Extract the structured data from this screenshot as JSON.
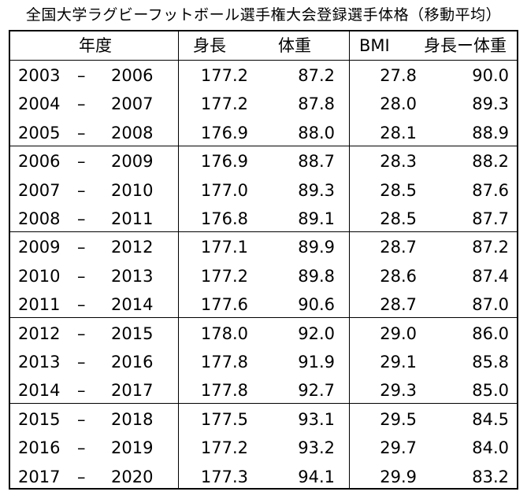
{
  "title": "全国大学ラグビーフットボール選手権大会登録選手体格（移動平均）",
  "headers": {
    "period": "年度",
    "height": "身長",
    "weight": "体重",
    "bmi": "BMI",
    "diff": "身長ー体重"
  },
  "rows": [
    {
      "from": "2003",
      "sep": "–",
      "to": "2006",
      "height": "177.2",
      "weight": "87.2",
      "bmi": "27.8",
      "diff": "90.0"
    },
    {
      "from": "2004",
      "sep": "–",
      "to": "2007",
      "height": "177.2",
      "weight": "87.8",
      "bmi": "28.0",
      "diff": "89.3"
    },
    {
      "from": "2005",
      "sep": "–",
      "to": "2008",
      "height": "176.9",
      "weight": "88.0",
      "bmi": "28.1",
      "diff": "88.9"
    },
    {
      "from": "2006",
      "sep": "–",
      "to": "2009",
      "height": "176.9",
      "weight": "88.7",
      "bmi": "28.3",
      "diff": "88.2"
    },
    {
      "from": "2007",
      "sep": "–",
      "to": "2010",
      "height": "177.0",
      "weight": "89.3",
      "bmi": "28.5",
      "diff": "87.6"
    },
    {
      "from": "2008",
      "sep": "–",
      "to": "2011",
      "height": "176.8",
      "weight": "89.1",
      "bmi": "28.5",
      "diff": "87.7"
    },
    {
      "from": "2009",
      "sep": "–",
      "to": "2012",
      "height": "177.1",
      "weight": "89.9",
      "bmi": "28.7",
      "diff": "87.2"
    },
    {
      "from": "2010",
      "sep": "–",
      "to": "2013",
      "height": "177.2",
      "weight": "89.8",
      "bmi": "28.6",
      "diff": "87.4"
    },
    {
      "from": "2011",
      "sep": "–",
      "to": "2014",
      "height": "177.6",
      "weight": "90.6",
      "bmi": "28.7",
      "diff": "87.0"
    },
    {
      "from": "2012",
      "sep": "–",
      "to": "2015",
      "height": "178.0",
      "weight": "92.0",
      "bmi": "29.0",
      "diff": "86.0"
    },
    {
      "from": "2013",
      "sep": "–",
      "to": "2016",
      "height": "177.8",
      "weight": "91.9",
      "bmi": "29.1",
      "diff": "85.8"
    },
    {
      "from": "2014",
      "sep": "–",
      "to": "2017",
      "height": "177.8",
      "weight": "92.7",
      "bmi": "29.3",
      "diff": "85.0"
    },
    {
      "from": "2015",
      "sep": "–",
      "to": "2018",
      "height": "177.5",
      "weight": "93.1",
      "bmi": "29.5",
      "diff": "84.5"
    },
    {
      "from": "2016",
      "sep": "–",
      "to": "2019",
      "height": "177.2",
      "weight": "93.2",
      "bmi": "29.7",
      "diff": "84.0"
    },
    {
      "from": "2017",
      "sep": "–",
      "to": "2020",
      "height": "177.3",
      "weight": "94.1",
      "bmi": "29.9",
      "diff": "83.2"
    }
  ]
}
